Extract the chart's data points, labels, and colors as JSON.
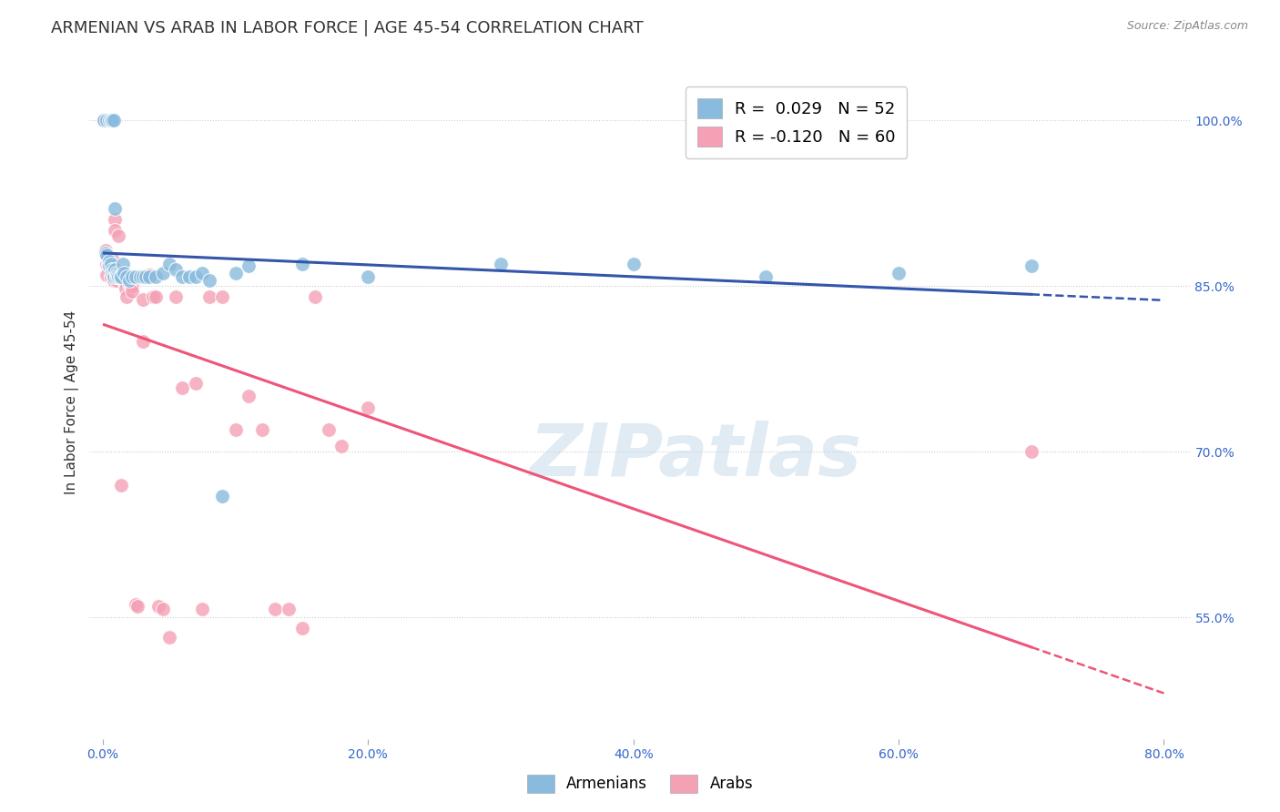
{
  "title": "ARMENIAN VS ARAB IN LABOR FORCE | AGE 45-54 CORRELATION CHART",
  "source": "Source: ZipAtlas.com",
  "ylabel": "In Labor Force | Age 45-54",
  "x_tick_vals": [
    0.0,
    0.2,
    0.4,
    0.6,
    0.8
  ],
  "x_tick_labels": [
    "0.0%",
    "20.0%",
    "40.0%",
    "60.0%",
    "80.0%"
  ],
  "y_tick_vals": [
    0.55,
    0.7,
    0.85,
    1.0
  ],
  "y_tick_labels": [
    "55.0%",
    "70.0%",
    "85.0%",
    "100.0%"
  ],
  "xlim": [
    -0.01,
    0.82
  ],
  "ylim": [
    0.44,
    1.05
  ],
  "watermark": "ZIPatlas",
  "armenian_color": "#88bbdd",
  "arab_color": "#f4a0b5",
  "armenian_trend_color": "#3355aa",
  "arab_trend_color": "#ee5577",
  "background_color": "#ffffff",
  "grid_color": "#cccccc",
  "title_fontsize": 13,
  "axis_label_fontsize": 11,
  "tick_fontsize": 10,
  "legend_fontsize": 13,
  "armenian_points": [
    [
      0.001,
      1.0
    ],
    [
      0.003,
      1.0
    ],
    [
      0.005,
      1.0
    ],
    [
      0.006,
      1.0
    ],
    [
      0.007,
      1.0
    ],
    [
      0.008,
      1.0
    ],
    [
      0.009,
      0.92
    ],
    [
      0.002,
      0.88
    ],
    [
      0.003,
      0.878
    ],
    [
      0.004,
      0.87
    ],
    [
      0.005,
      0.872
    ],
    [
      0.005,
      0.868
    ],
    [
      0.006,
      0.87
    ],
    [
      0.007,
      0.865
    ],
    [
      0.007,
      0.862
    ],
    [
      0.008,
      0.862
    ],
    [
      0.008,
      0.858
    ],
    [
      0.009,
      0.865
    ],
    [
      0.01,
      0.862
    ],
    [
      0.01,
      0.858
    ],
    [
      0.011,
      0.86
    ],
    [
      0.012,
      0.858
    ],
    [
      0.013,
      0.858
    ],
    [
      0.014,
      0.858
    ],
    [
      0.015,
      0.87
    ],
    [
      0.016,
      0.862
    ],
    [
      0.018,
      0.858
    ],
    [
      0.02,
      0.855
    ],
    [
      0.022,
      0.858
    ],
    [
      0.025,
      0.858
    ],
    [
      0.028,
      0.858
    ],
    [
      0.03,
      0.858
    ],
    [
      0.032,
      0.858
    ],
    [
      0.035,
      0.858
    ],
    [
      0.04,
      0.858
    ],
    [
      0.045,
      0.862
    ],
    [
      0.05,
      0.87
    ],
    [
      0.055,
      0.865
    ],
    [
      0.06,
      0.858
    ],
    [
      0.065,
      0.858
    ],
    [
      0.07,
      0.858
    ],
    [
      0.075,
      0.862
    ],
    [
      0.08,
      0.855
    ],
    [
      0.09,
      0.66
    ],
    [
      0.1,
      0.862
    ],
    [
      0.11,
      0.868
    ],
    [
      0.15,
      0.87
    ],
    [
      0.2,
      0.858
    ],
    [
      0.3,
      0.87
    ],
    [
      0.4,
      0.87
    ],
    [
      0.5,
      0.858
    ],
    [
      0.6,
      0.862
    ],
    [
      0.7,
      0.868
    ]
  ],
  "arab_points": [
    [
      0.001,
      1.0
    ],
    [
      0.002,
      0.882
    ],
    [
      0.003,
      0.87
    ],
    [
      0.003,
      0.86
    ],
    [
      0.004,
      0.875
    ],
    [
      0.005,
      0.87
    ],
    [
      0.006,
      0.868
    ],
    [
      0.006,
      0.858
    ],
    [
      0.007,
      0.875
    ],
    [
      0.007,
      0.862
    ],
    [
      0.008,
      0.858
    ],
    [
      0.008,
      0.855
    ],
    [
      0.009,
      0.91
    ],
    [
      0.009,
      0.9
    ],
    [
      0.01,
      0.858
    ],
    [
      0.01,
      0.855
    ],
    [
      0.011,
      0.862
    ],
    [
      0.012,
      0.895
    ],
    [
      0.012,
      0.858
    ],
    [
      0.013,
      0.862
    ],
    [
      0.014,
      0.67
    ],
    [
      0.015,
      0.858
    ],
    [
      0.015,
      0.855
    ],
    [
      0.016,
      0.855
    ],
    [
      0.017,
      0.848
    ],
    [
      0.018,
      0.84
    ],
    [
      0.019,
      0.855
    ],
    [
      0.02,
      0.855
    ],
    [
      0.02,
      0.852
    ],
    [
      0.021,
      0.85
    ],
    [
      0.022,
      0.85
    ],
    [
      0.022,
      0.845
    ],
    [
      0.025,
      0.562
    ],
    [
      0.026,
      0.56
    ],
    [
      0.028,
      0.858
    ],
    [
      0.03,
      0.838
    ],
    [
      0.03,
      0.8
    ],
    [
      0.035,
      0.86
    ],
    [
      0.038,
      0.84
    ],
    [
      0.04,
      0.84
    ],
    [
      0.042,
      0.56
    ],
    [
      0.045,
      0.558
    ],
    [
      0.05,
      0.532
    ],
    [
      0.055,
      0.84
    ],
    [
      0.06,
      0.758
    ],
    [
      0.07,
      0.762
    ],
    [
      0.075,
      0.558
    ],
    [
      0.08,
      0.84
    ],
    [
      0.09,
      0.84
    ],
    [
      0.1,
      0.72
    ],
    [
      0.11,
      0.75
    ],
    [
      0.12,
      0.72
    ],
    [
      0.13,
      0.558
    ],
    [
      0.14,
      0.558
    ],
    [
      0.15,
      0.54
    ],
    [
      0.16,
      0.84
    ],
    [
      0.17,
      0.72
    ],
    [
      0.18,
      0.705
    ],
    [
      0.2,
      0.74
    ],
    [
      0.7,
      0.7
    ]
  ]
}
